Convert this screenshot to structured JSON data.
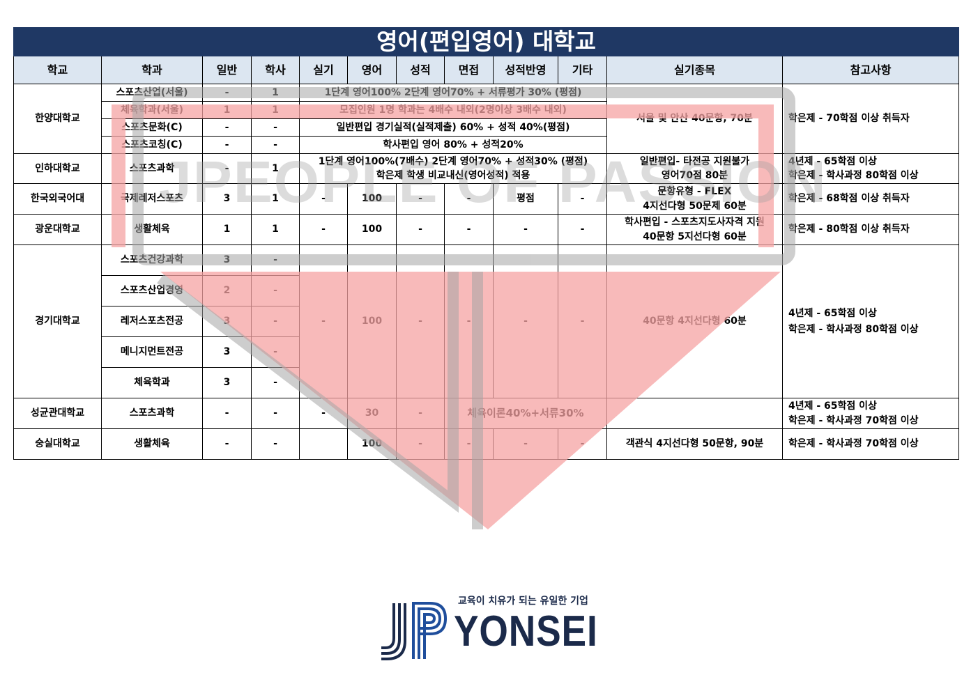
{
  "title": "영어(편입영어) 대학교",
  "headers": [
    "학교",
    "학과",
    "일반",
    "학사",
    "실기",
    "영어",
    "성적",
    "면접",
    "성적반영",
    "기타",
    "실기종목",
    "참고사항"
  ],
  "watermark_text": "JPEOPLE OF PASSION",
  "hanyang": {
    "school": "한양대학교",
    "depts": [
      {
        "name": "스포츠산업(서울)",
        "general": "-",
        "bachelor": "1"
      },
      {
        "name": "체육학과(서울)",
        "general": "1",
        "bachelor": "1"
      },
      {
        "name": "스포츠문화(C)",
        "general": "-",
        "bachelor": "-"
      },
      {
        "name": "스포츠코칭(C)",
        "general": "-",
        "bachelor": "-"
      }
    ],
    "info_lines": [
      "1단계 영어100% 2단계 영어70% + 서류평가 30% (평점)",
      "모집인원 1명 학과는 4배수 내외(2명이상 3배수 내외)",
      "일반편입 경기실적(실적제출) 60% + 성적 40%(평점)",
      "학사편입 영어 80% + 성적20%"
    ],
    "practical": "서울 및 안산 40문항, 70분",
    "note": "학은제 - 70학점 이상 취득자"
  },
  "inha": {
    "school": "인하대학교",
    "dept": "스포츠과학",
    "general": "-",
    "bachelor": "1",
    "info_lines": [
      "1단계 영어100%(7배수) 2단계 영어70% + 성적30% (평점)",
      "학은제 학생 비교내신(영어성적) 적용"
    ],
    "practical_lines": [
      "일반편입- 타전공 지원불가",
      "영어70점 80분"
    ],
    "note_lines": [
      "4년제 - 65학점 이상",
      "학은제 - 학사과정 80학점 이상"
    ]
  },
  "hufs": {
    "school": "한국외국어대",
    "dept": "국제레저스포츠",
    "general": "3",
    "bachelor": "1",
    "practical_test": "-",
    "english": "100",
    "grade": "-",
    "interview": "-",
    "grade_reflect": "평점",
    "etc": "-",
    "practical_lines": [
      "문항유형 - FLEX",
      "4지선다형 50문제 60분"
    ],
    "note": "학은제 - 68학점 이상 취득자"
  },
  "kwangwoon": {
    "school": "광운대학교",
    "dept": "생활체육",
    "general": "1",
    "bachelor": "1",
    "practical_test": "-",
    "english": "100",
    "grade": "-",
    "interview": "-",
    "grade_reflect": "-",
    "etc": "-",
    "practical_lines": [
      "학사편입 - 스포츠지도사자격 지원",
      "40문항 5지선다형 60분"
    ],
    "note": "학은제 - 80학점 이상 취득자"
  },
  "kyonggi": {
    "school": "경기대학교",
    "depts": [
      {
        "name": "스포츠건강과학",
        "general": "3",
        "bachelor": "-"
      },
      {
        "name": "스포츠산업경영",
        "general": "2",
        "bachelor": "-"
      },
      {
        "name": "레저스포츠전공",
        "general": "3",
        "bachelor": "-"
      },
      {
        "name": "메니지먼트전공",
        "general": "3",
        "bachelor": "-"
      },
      {
        "name": "체육학과",
        "general": "3",
        "bachelor": "-"
      }
    ],
    "practical_test": "-",
    "english": "100",
    "grade": "-",
    "interview": "-",
    "grade_reflect": "-",
    "etc": "-",
    "practical": "40문항 4지선다형 60분",
    "note_lines": [
      "4년제 - 65학점 이상",
      "학은제 - 학사과정 80학점 이상"
    ]
  },
  "skku": {
    "school": "성균관대학교",
    "dept": "스포츠과학",
    "general": "-",
    "bachelor": "-",
    "practical_test": "-",
    "english": "30",
    "grade": "-",
    "span_text": "체육이론40%+서류30%",
    "practical": "",
    "note_lines": [
      "4년제 - 65학점 이상",
      "학은제 - 학사과정 70학점 이상"
    ]
  },
  "soongsil": {
    "school": "숭실대학교",
    "dept": "생활체육",
    "general": "-",
    "bachelor": "-",
    "practical_test": "",
    "english": "100",
    "grade": "-",
    "interview": "-",
    "grade_reflect": "-",
    "etc": "-",
    "practical": "객관식 4지선다형 50문항, 90분",
    "note": "학은제 - 학사과정 70학점 이상"
  },
  "logo": {
    "tagline": "교육이 치유가 되는 유일한 기업",
    "brand": "YONSEI",
    "mark": "JP",
    "colors": {
      "navy": "#1b2a4a",
      "blue": "#1f4e9c"
    }
  },
  "colors": {
    "title_bg": "#1f3864",
    "header_bg": "#dce6f1",
    "watermark_red": "#f4a6a6",
    "watermark_gray": "#9e9e9e"
  }
}
